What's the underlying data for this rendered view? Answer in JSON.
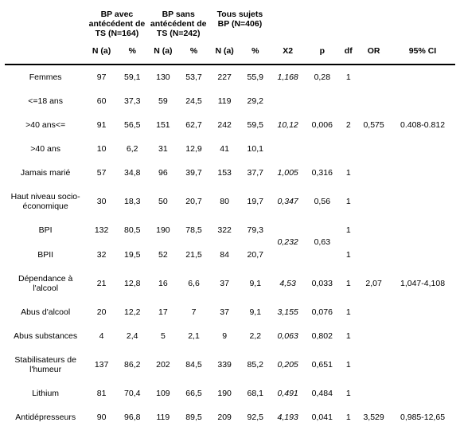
{
  "header": {
    "group1": "BP avec antécédent de TS (N=164)",
    "group2": "BP sans antécédent de TS (N=242)",
    "group3": "Tous sujets BP (N=406)",
    "n_a": "N (a)",
    "pct": "%",
    "x2": "X2",
    "p": "p",
    "df": "df",
    "or": "OR",
    "ci": "95% CI"
  },
  "rows": [
    {
      "label": "Femmes",
      "n1": "97",
      "p1": "59,1",
      "n2": "130",
      "p2": "53,7",
      "n3": "227",
      "p3": "55,9",
      "x2": "1,168",
      "pv": "0,28",
      "df": "1",
      "or": "",
      "ci": ""
    },
    {
      "label": "<=18 ans",
      "n1": "60",
      "p1": "37,3",
      "n2": "59",
      "p2": "24,5",
      "n3": "119",
      "p3": "29,2",
      "x2": "",
      "pv": "",
      "df": "",
      "or": "",
      "ci": ""
    },
    {
      "label": ">40 ans<=",
      "n1": "91",
      "p1": "56,5",
      "n2": "151",
      "p2": "62,7",
      "n3": "242",
      "p3": "59,5",
      "x2": "10,12",
      "pv": "0,006",
      "df": "2",
      "or": "0,575",
      "ci": "0.408-0.812"
    },
    {
      "label": ">40 ans",
      "n1": "10",
      "p1": "6,2",
      "n2": "31",
      "p2": "12,9",
      "n3": "41",
      "p3": "10,1",
      "x2": "",
      "pv": "",
      "df": "",
      "or": "",
      "ci": ""
    },
    {
      "label": "Jamais marié",
      "n1": "57",
      "p1": "34,8",
      "n2": "96",
      "p2": "39,7",
      "n3": "153",
      "p3": "37,7",
      "x2": "1,005",
      "pv": "0,316",
      "df": "1",
      "or": "",
      "ci": ""
    },
    {
      "label": "Haut niveau socio-économique",
      "n1": "30",
      "p1": "18,3",
      "n2": "50",
      "p2": "20,7",
      "n3": "80",
      "p3": "19,7",
      "x2": "0,347",
      "pv": "0,56",
      "df": "1",
      "or": "",
      "ci": ""
    },
    {
      "label": "BPI",
      "n1": "132",
      "p1": "80,5",
      "n2": "190",
      "p2": "78,5",
      "n3": "322",
      "p3": "79,3",
      "x2": "",
      "pv": "",
      "df": "1",
      "or": "",
      "ci": ""
    },
    {
      "label": "BPII",
      "n1": "32",
      "p1": "19,5",
      "n2": "52",
      "p2": "21,5",
      "n3": "84",
      "p3": "20,7",
      "x2": "",
      "pv": "",
      "df": "1",
      "or": "",
      "ci": ""
    },
    {
      "label": "Dépendance à l'alcool",
      "n1": "21",
      "p1": "12,8",
      "n2": "16",
      "p2": "6,6",
      "n3": "37",
      "p3": "9,1",
      "x2": "4,53",
      "pv": "0,033",
      "df": "1",
      "or": "2,07",
      "ci": "1,047-4,108"
    },
    {
      "label": "Abus d'alcool",
      "n1": "20",
      "p1": "12,2",
      "n2": "17",
      "p2": "7",
      "n3": "37",
      "p3": "9,1",
      "x2": "3,155",
      "pv": "0,076",
      "df": "1",
      "or": "",
      "ci": ""
    },
    {
      "label": "Abus substances",
      "n1": "4",
      "p1": "2,4",
      "n2": "5",
      "p2": "2,1",
      "n3": "9",
      "p3": "2,2",
      "x2": "0,063",
      "pv": "0,802",
      "df": "1",
      "or": "",
      "ci": ""
    },
    {
      "label": "Stabilisateurs de l'humeur",
      "n1": "137",
      "p1": "86,2",
      "n2": "202",
      "p2": "84,5",
      "n3": "339",
      "p3": "85,2",
      "x2": "0,205",
      "pv": "0,651",
      "df": "1",
      "or": "",
      "ci": ""
    },
    {
      "label": "Lithium",
      "n1": "81",
      "p1": "70,4",
      "n2": "109",
      "p2": "66,5",
      "n3": "190",
      "p3": "68,1",
      "x2": "0,491",
      "pv": "0,484",
      "df": "1",
      "or": "",
      "ci": ""
    },
    {
      "label": "Antidépresseurs",
      "n1": "90",
      "p1": "96,8",
      "n2": "119",
      "p2": "89,5",
      "n3": "209",
      "p3": "92,5",
      "x2": "4,193",
      "pv": "0,041",
      "df": "1",
      "or": "3,529",
      "ci": "0,985-12,65"
    }
  ],
  "bpi_bpii_shared": {
    "x2": "0,232",
    "pv": "0,63"
  }
}
